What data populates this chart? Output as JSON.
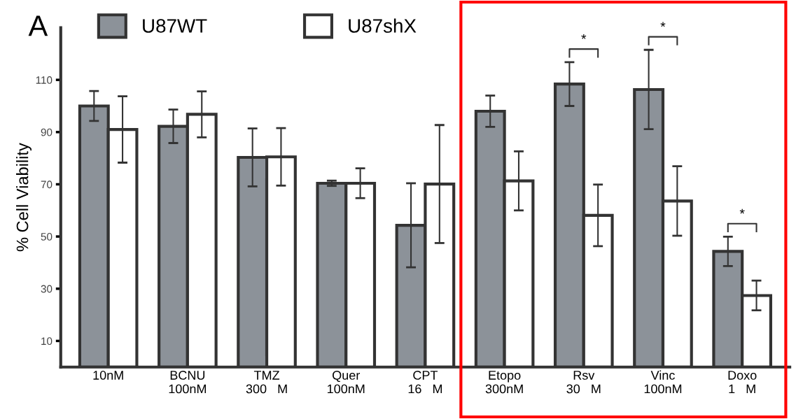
{
  "chart_data": {
    "type": "bar",
    "categories": [
      "10nM",
      "BCNU\n100nM",
      "TMZ\n300   M",
      "Quer\n100nM",
      "CPT\n16   M",
      "Etopo\n300nM",
      "Rsv\n30   M",
      "Vinc\n100nM",
      "Doxo\n1   M"
    ],
    "series": [
      {
        "name": "U87WT",
        "color": "#8c9299",
        "values": [
          100,
          92.2,
          80.3,
          70.4,
          54.3,
          98,
          108.4,
          106.3,
          44.3
        ],
        "errors": [
          5.7,
          6.4,
          11.1,
          1,
          16.1,
          6,
          8.4,
          15.2,
          5.6
        ]
      },
      {
        "name": "U87shX",
        "color": "#ffffff",
        "values": [
          91,
          96.8,
          80.5,
          70.4,
          70.1,
          71.3,
          58.1,
          63.6,
          27.4
        ],
        "errors": [
          12.7,
          8.8,
          11,
          5.7,
          22.6,
          11.3,
          11.8,
          13.3,
          5.7
        ]
      }
    ],
    "ylabel": "% Cell Viability",
    "ylim": [
      0,
      130
    ],
    "yticks": [
      10,
      30,
      50,
      70,
      90,
      110
    ],
    "annotations": [
      "A",
      "*",
      "*",
      "*"
    ],
    "legend": "top",
    "grid": false
  }
}
